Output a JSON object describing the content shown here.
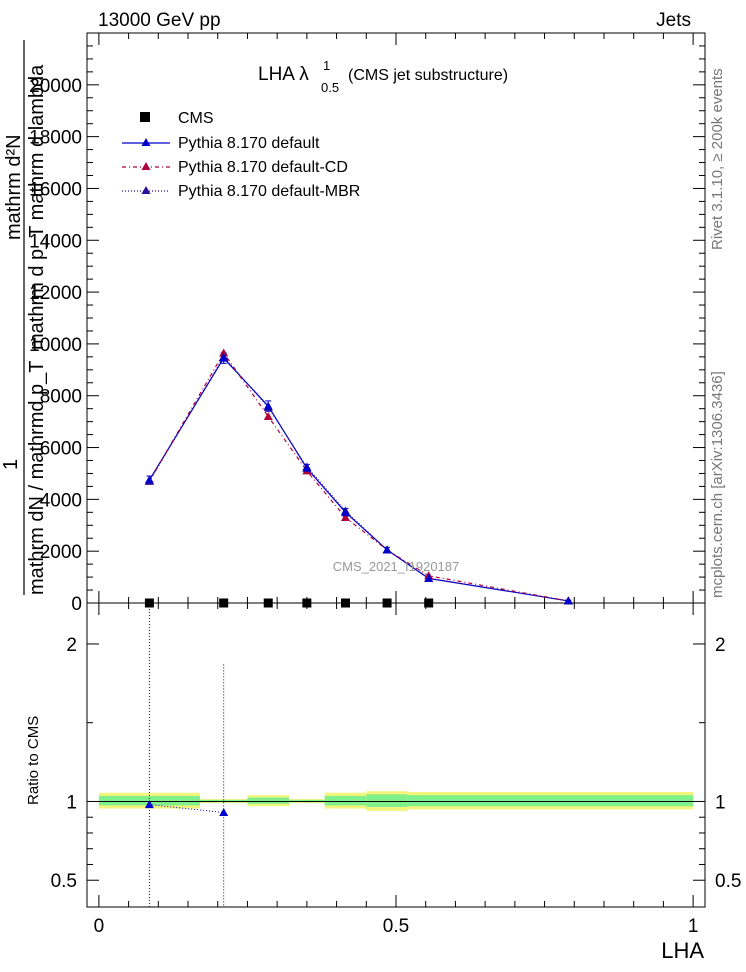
{
  "header": {
    "energy_label": "13000 GeV pp",
    "category_label": "Jets"
  },
  "side_text": {
    "rivet": "Rivet 3.1.10, ≥ 200k events",
    "source": "mcplots.cern.ch [arXiv:1306.3436]"
  },
  "watermark": "CMS_2021_I1920187",
  "colors": {
    "cms": "#000000",
    "default": "#0000cc",
    "cd": "#b0003a",
    "mbr": "#2a0f99",
    "band_inner": "#7ff08a",
    "band_outer": "#f4f47a"
  },
  "chart_data": [
    {
      "type": "line",
      "title": "LHA λ",
      "title_sup": "1",
      "title_sub": "0.5",
      "title_note": "(CMS jet substructure)",
      "ylabel_lines": [
        "mathrm d²N",
        "mathrm d p_T mathrm d lambda",
        "1",
        "mathrm dN / mathrmd p_T"
      ],
      "xlim": [
        -0.02,
        1.02
      ],
      "ylim": [
        0,
        22000
      ],
      "y_tick_labels": [
        "0",
        "2000",
        "4000",
        "6000",
        "8000",
        "10000",
        "12000",
        "14000",
        "16000",
        "18000",
        "20000"
      ],
      "y_ticks": [
        0,
        2000,
        4000,
        6000,
        8000,
        10000,
        12000,
        14000,
        16000,
        18000,
        20000
      ],
      "legend": [
        "CMS",
        "Pythia 8.170 default",
        "Pythia 8.170 default-CD",
        "Pythia 8.170 default-MBR"
      ],
      "legend_position": "top-left",
      "series": [
        {
          "name": "CMS",
          "marker": "square",
          "x": [
            0.085,
            0.21,
            0.285,
            0.35,
            0.415,
            0.485,
            0.555
          ],
          "y": [
            0,
            0,
            0,
            0,
            0,
            0,
            0
          ]
        },
        {
          "name": "Pythia 8.170 default",
          "x": [
            0.085,
            0.21,
            0.285,
            0.35,
            0.415,
            0.485,
            0.555,
            0.79
          ],
          "y": [
            4750,
            9450,
            7600,
            5200,
            3500,
            2050,
            950,
            80
          ],
          "err": [
            150,
            200,
            200,
            150,
            150,
            100,
            80,
            30
          ]
        },
        {
          "name": "Pythia 8.170 default-CD",
          "x": [
            0.085,
            0.21,
            0.285,
            0.35,
            0.415,
            0.485,
            0.555,
            0.79
          ],
          "y": [
            4700,
            9650,
            7200,
            5100,
            3300,
            2050,
            1050,
            80
          ]
        },
        {
          "name": "Pythia 8.170 default-MBR",
          "x": [
            0.085,
            0.21,
            0.285,
            0.35,
            0.415,
            0.485,
            0.555,
            0.79
          ],
          "y": [
            4700,
            9500,
            7550,
            5250,
            3550,
            2050,
            950,
            80
          ]
        }
      ]
    },
    {
      "type": "line",
      "ylabel": "Ratio to CMS",
      "xlabel": "LHA",
      "xlim": [
        -0.02,
        1.02
      ],
      "ylim": [
        0.33,
        2.26
      ],
      "x_ticks": [
        0,
        0.5,
        1
      ],
      "x_tick_labels": [
        "0",
        "0.5",
        "1"
      ],
      "y_ticks": [
        0.5,
        1,
        2
      ],
      "y_tick_labels": [
        "0.5",
        "1",
        "2"
      ],
      "band_bins": [
        {
          "x0": 0.0,
          "x1": 0.17,
          "inner": [
            0.975,
            1.035
          ],
          "outer": [
            0.955,
            1.055
          ]
        },
        {
          "x0": 0.17,
          "x1": 0.25,
          "inner": [
            0.995,
            1.01
          ],
          "outer": [
            0.99,
            1.015
          ]
        },
        {
          "x0": 0.25,
          "x1": 0.32,
          "inner": [
            0.985,
            1.025
          ],
          "outer": [
            0.97,
            1.04
          ]
        },
        {
          "x0": 0.32,
          "x1": 0.38,
          "inner": [
            0.995,
            1.01
          ],
          "outer": [
            0.99,
            1.015
          ]
        },
        {
          "x0": 0.38,
          "x1": 0.45,
          "inner": [
            0.975,
            1.035
          ],
          "outer": [
            0.955,
            1.055
          ]
        },
        {
          "x0": 0.45,
          "x1": 0.52,
          "inner": [
            0.965,
            1.045
          ],
          "outer": [
            0.94,
            1.065
          ]
        },
        {
          "x0": 0.52,
          "x1": 1.0,
          "inner": [
            0.97,
            1.04
          ],
          "outer": [
            0.95,
            1.06
          ]
        }
      ],
      "series": [
        {
          "name": "Pythia 8.170 default",
          "x": [
            0.085,
            0.21
          ],
          "y": [
            0.98,
            0.93
          ],
          "err_up": [
            2.26,
            1.87
          ],
          "err_down": [
            0.33,
            0.33
          ]
        }
      ]
    }
  ]
}
